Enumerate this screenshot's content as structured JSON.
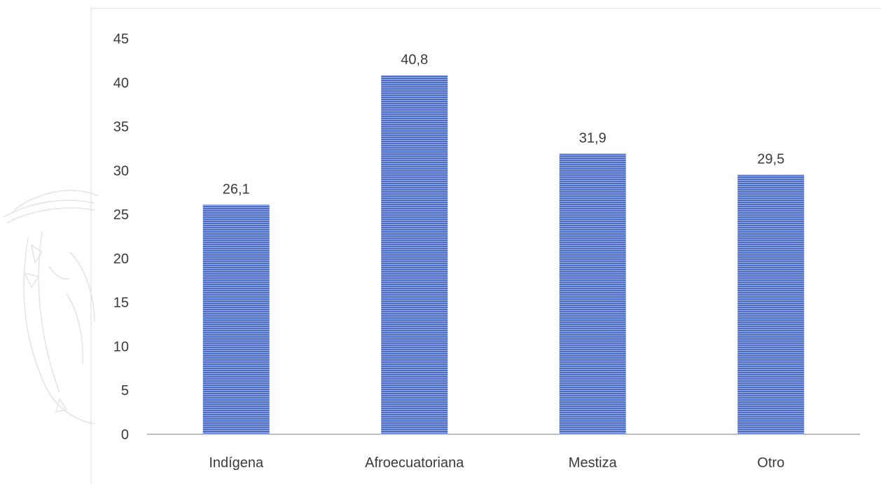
{
  "chart_data": {
    "type": "bar",
    "title": "",
    "xlabel": "",
    "ylabel": "",
    "categories": [
      "Indígena",
      "Afroecuatoriana",
      "Mestiza",
      "Otro"
    ],
    "values": [
      26.1,
      40.8,
      31.9,
      29.5
    ],
    "data_labels": [
      "26,1",
      "40,8",
      "31,9",
      "29,5"
    ],
    "ylim": [
      0,
      45
    ],
    "y_ticks": [
      0,
      5,
      10,
      15,
      20,
      25,
      30,
      35,
      40,
      45
    ],
    "y_tick_labels": [
      "0",
      "5",
      "10",
      "15",
      "20",
      "25",
      "30",
      "35",
      "40",
      "45"
    ],
    "grid": false,
    "legend": "none",
    "bar_color": "#4a6cc8",
    "bar_stripe_color": "#ffffff",
    "axis_color": "#bfbfbf",
    "frame_color": "#d9d9d9",
    "text_color": "#3a3a3a",
    "watermark": "coat-of-arms"
  }
}
